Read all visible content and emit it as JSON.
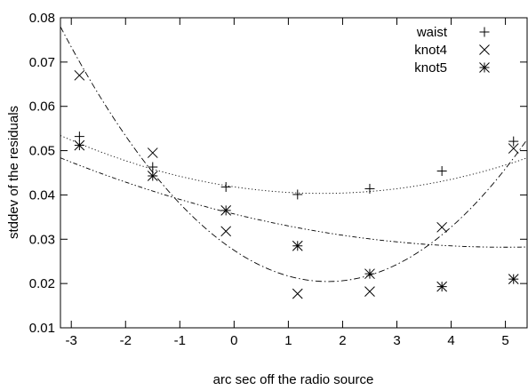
{
  "chart_data": {
    "type": "scatter",
    "title": "",
    "xlabel": "arc sec off the radio source",
    "ylabel": "stddev of the residuals",
    "xlim": [
      -3.2,
      5.4
    ],
    "ylim": [
      0.01,
      0.08
    ],
    "xticks": [
      "-3",
      "-2",
      "-1",
      "0",
      "1",
      "2",
      "3",
      "4",
      "5"
    ],
    "xtick_values": [
      -3,
      -2,
      -1,
      0,
      1,
      2,
      3,
      4,
      5
    ],
    "yticks": [
      "0.01",
      "0.02",
      "0.03",
      "0.04",
      "0.05",
      "0.06",
      "0.07",
      "0.08"
    ],
    "ytick_values": [
      0.01,
      0.02,
      0.03,
      0.04,
      0.05,
      0.06,
      0.07,
      0.08
    ],
    "grid": false,
    "legend_position": "top-right",
    "series": [
      {
        "name": "waist",
        "marker": "plus",
        "line_style": "dotted",
        "x": [
          -2.85,
          -1.5,
          -0.15,
          1.17,
          2.5,
          3.83,
          5.15
        ],
        "y": [
          0.0532,
          0.0463,
          0.0418,
          0.0401,
          0.0414,
          0.0454,
          0.0521
        ],
        "fit": {
          "a": 0.000562,
          "b": -0.001825,
          "c": 0.04183
        }
      },
      {
        "name": "knot4",
        "marker": "cross",
        "line_style": "dash-dot",
        "x": [
          -2.85,
          -1.5,
          -0.15,
          1.17,
          2.5,
          3.83,
          5.15
        ],
        "y": [
          0.067,
          0.0495,
          0.0318,
          0.0177,
          0.0182,
          0.0327,
          0.0505
        ],
        "fit": {
          "a": 0.002373,
          "b": -0.00818,
          "c": 0.0275
        }
      },
      {
        "name": "knot5",
        "marker": "asterisk",
        "line_style": "dash-dot-dot",
        "x": [
          -2.85,
          -1.5,
          -0.15,
          1.17,
          2.5,
          3.83,
          5.15
        ],
        "y": [
          0.0512,
          0.0443,
          0.0365,
          0.0285,
          0.0222,
          0.0193,
          0.021
        ],
        "fit": {
          "a": 0.0003,
          "b": -0.003,
          "c": 0.0357
        }
      }
    ]
  }
}
